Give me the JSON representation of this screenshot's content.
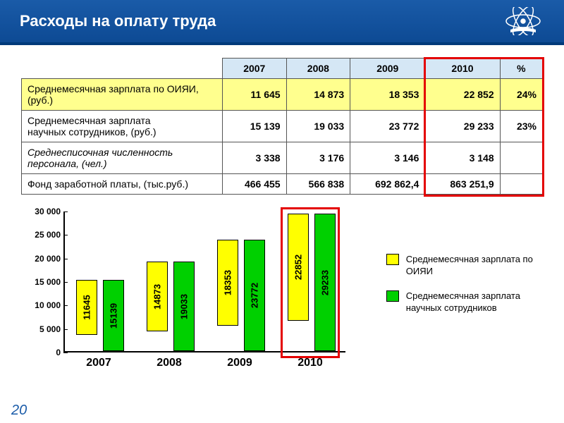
{
  "header": {
    "title": "Расходы на оплату труда"
  },
  "colors": {
    "header_bg_top": "#1a5ba8",
    "header_bg_bottom": "#0d4a94",
    "th_bg": "#d5e7f5",
    "hl_bg": "#ffff8e",
    "bar_yellow": "#ffff00",
    "bar_green": "#00d000",
    "red_box": "#e40000",
    "slide_num": "#1a5ba8",
    "black": "#000000",
    "white": "#ffffff"
  },
  "table": {
    "columns": [
      "2007",
      "2008",
      "2009",
      "2010",
      "%"
    ],
    "rows": [
      {
        "label": "Среднемесячная зарплата по ОИЯИ, (руб.)",
        "cells": [
          "11 645",
          "14 873",
          "18 353",
          "22 852",
          "24%"
        ],
        "highlight": true,
        "italic": false
      },
      {
        "label": "Среднемесячная зарплата\n научных сотрудников, (руб.)",
        "cells": [
          "15 139",
          "19 033",
          "23 772",
          "29 233",
          "23%"
        ],
        "highlight": false,
        "italic": false
      },
      {
        "label": "Среднесписочная численность персонала, (чел.)",
        "cells": [
          "3 338",
          "3 176",
          "3 146",
          "3 148",
          ""
        ],
        "highlight": false,
        "italic": true
      },
      {
        "label": "Фонд заработной платы, (тыс.руб.)",
        "cells": [
          "466 455",
          "566 838",
          "692 862,4",
          "863 251,9",
          ""
        ],
        "highlight": false,
        "italic": false
      }
    ],
    "red_box": {
      "col_start": 3,
      "col_span": 2
    }
  },
  "chart": {
    "type": "bar",
    "ylim": [
      0,
      30000
    ],
    "ytick_step": 5000,
    "y_ticks": [
      "0",
      "5 000",
      "10 000",
      "15 000",
      "20 000",
      "25 000",
      "30 000"
    ],
    "categories": [
      "2007",
      "2008",
      "2009",
      "2010"
    ],
    "series": [
      {
        "name": "Среднемесячная зарплата по ОИЯИ",
        "color": "#ffff00",
        "class": "yellow",
        "values": [
          11645,
          14873,
          18353,
          22852
        ]
      },
      {
        "name": "Среднемесячная зарплата научных сотрудников",
        "color": "#00d000",
        "class": "green",
        "values": [
          15139,
          19033,
          23772,
          29233
        ]
      }
    ],
    "red_box_group_index": 3,
    "label_fontsize": 13,
    "axis_fontsize": 12,
    "xlabel_fontsize": 16
  },
  "legend": [
    {
      "color": "#ffff00",
      "text": "Среднемесячная зарплата по ОИЯИ"
    },
    {
      "color": "#00d000",
      "text": "Среднемесячная зарплата научных сотрудников"
    }
  ],
  "slide_number": "20"
}
